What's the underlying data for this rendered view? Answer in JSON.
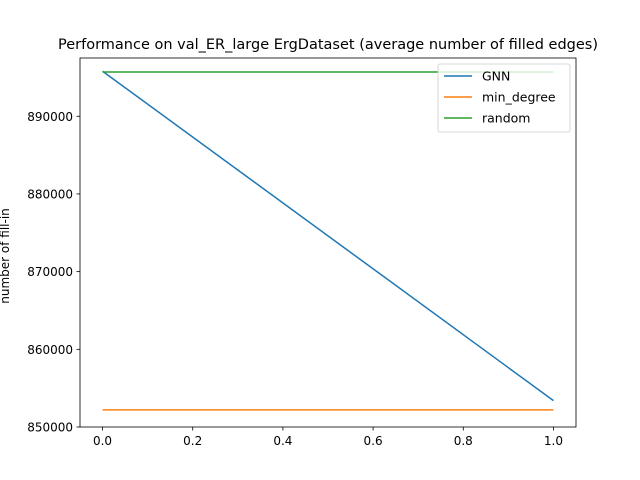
{
  "chart_data": {
    "type": "line",
    "title": "Performance on val_ER_large ErgDataset (average number of filled edges)",
    "xlabel": "",
    "ylabel": "number of fill-in",
    "xlim": [
      -0.05,
      1.05
    ],
    "ylim": [
      850000,
      897500
    ],
    "xticks": [
      0.0,
      0.2,
      0.4,
      0.6,
      0.8,
      1.0
    ],
    "xtick_labels": [
      "0.0",
      "0.2",
      "0.4",
      "0.6",
      "0.8",
      "1.0"
    ],
    "yticks": [
      850000,
      860000,
      870000,
      880000,
      890000
    ],
    "ytick_labels": [
      "850000",
      "860000",
      "870000",
      "880000",
      "890000"
    ],
    "grid": false,
    "legend_position": "top-right",
    "series": [
      {
        "name": "GNN",
        "color": "#1f77b4",
        "x": [
          0.0,
          1.0
        ],
        "y": [
          895800,
          853400
        ]
      },
      {
        "name": "min_degree",
        "color": "#ff7f0e",
        "x": [
          0.0,
          1.0
        ],
        "y": [
          852200,
          852200
        ]
      },
      {
        "name": "random",
        "color": "#2ca02c",
        "x": [
          0.0,
          1.0
        ],
        "y": [
          895700,
          895700
        ]
      }
    ]
  }
}
